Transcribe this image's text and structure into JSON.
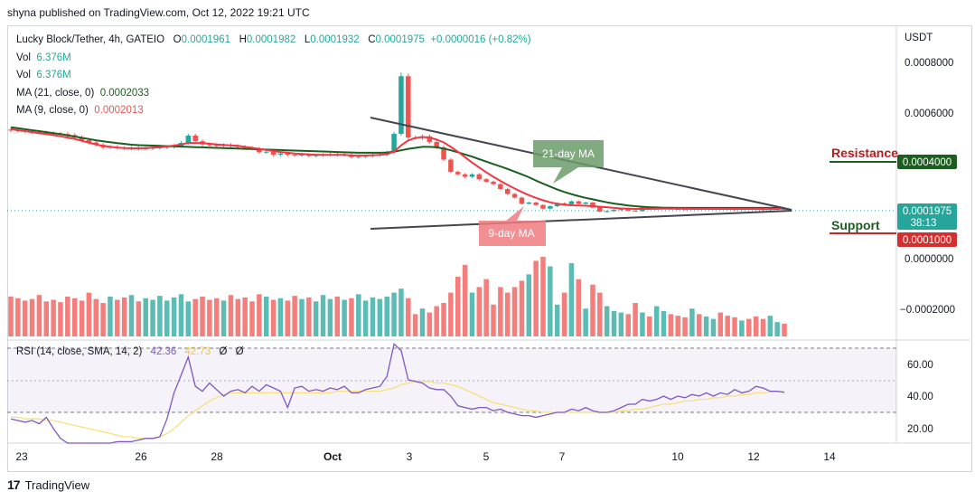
{
  "header": {
    "publisher": "shyna published on TradingView.com, Oct 12, 2022 19:21 UTC"
  },
  "legend": {
    "symbol": "Lucky Block/Tether, 4h, GATEIO",
    "o_label": "O",
    "o": "0.0001961",
    "h_label": "H",
    "h": "0.0001982",
    "l_label": "L",
    "l": "0.0001932",
    "c_label": "C",
    "c": "0.0001975",
    "change": "+0.0000016 (+0.82%)",
    "vol1_label": "Vol",
    "vol1": "6.376M",
    "vol2_label": "Vol",
    "vol2": "6.376M",
    "ma21_label": "MA (21, close, 0)",
    "ma21": "0.0002033",
    "ma9_label": "MA (9, close, 0)",
    "ma9": "0.0002013"
  },
  "price_axis": {
    "currency": "USDT",
    "ticks": [
      "0.0008000",
      "0.0006000",
      "0.0000000",
      "−0.0002000"
    ],
    "last_price": "0.0001975",
    "countdown": "38:13",
    "resistance_price": "0.0004000",
    "support_price": "0.0001000"
  },
  "annotations": {
    "resistance": "Resistance",
    "support": "Support",
    "ma21_callout": "21-day MA",
    "ma9_callout": "9-day MA"
  },
  "rsi": {
    "label": "RSI (14, close, SMA, 14, 2)",
    "rsi_value": "42.36",
    "sma_value": "42.73",
    "extra1": "Ø",
    "extra2": "Ø",
    "ticks": [
      "60.00",
      "40.00",
      "20.00"
    ]
  },
  "x_axis": {
    "ticks": [
      "23",
      "26",
      "28",
      "Oct",
      "3",
      "5",
      "7",
      "10",
      "12",
      "14"
    ]
  },
  "footer": {
    "brand": "TradingView"
  },
  "colors": {
    "up": "#26a69a",
    "down": "#ef5350",
    "ma21": "#1b5e20",
    "ma9": "#f23645",
    "rsi": "#7e57c2",
    "rsi_sma": "#f7e07a"
  },
  "chart_data": {
    "type": "candlestick",
    "title": "Lucky Block/Tether, 4h, GATEIO",
    "ylabel": "USDT",
    "ylim": [
      -0.00023,
      0.00085
    ],
    "x_ticks": [
      "23",
      "26",
      "28",
      "Oct",
      "3",
      "5",
      "7",
      "10",
      "12",
      "14"
    ],
    "closes": [
      0.00052,
      0.000518,
      0.000515,
      0.000512,
      0.00051,
      0.000508,
      0.000506,
      0.000504,
      0.0005,
      0.00049,
      0.00048,
      0.00047,
      0.00046,
      0.00045,
      0.000452,
      0.000448,
      0.000446,
      0.000448,
      0.000444,
      0.000446,
      0.000448,
      0.00045,
      0.000452,
      0.000456,
      0.000468,
      0.000498,
      0.000475,
      0.000462,
      0.00046,
      0.000458,
      0.00046,
      0.000455,
      0.000452,
      0.000448,
      0.000445,
      0.00043,
      0.000432,
      0.00042,
      0.000425,
      0.00042,
      0.000418,
      0.00042,
      0.000415,
      0.000418,
      0.00042,
      0.000422,
      0.000418,
      0.00042,
      0.00041,
      0.000412,
      0.000415,
      0.000418,
      0.00042,
      0.00043,
      0.000505,
      0.00074,
      0.00049,
      0.000488,
      0.000495,
      0.000472,
      0.00045,
      0.0004,
      0.00035,
      0.00034,
      0.00033,
      0.00034,
      0.00032,
      0.00031,
      0.0003,
      0.00028,
      0.00026,
      0.000245,
      0.00022,
      0.000225,
      0.000215,
      0.0002,
      0.00021,
      0.000222,
      0.000218,
      0.00023,
      0.00022,
      0.000225,
      0.000205,
      0.000188,
      0.00019,
      0.000195,
      0.000198,
      0.000192,
      0.00019,
      0.000205,
      0.000198,
      0.0002,
      0.000202,
      0.000199,
      0.000198,
      0.000197,
      0.000199,
      0.000198,
      0.0002,
      0.000201,
      0.000199,
      0.000198,
      0.000197,
      0.0002,
      0.000199,
      0.000198,
      0.000197,
      0.000198,
      0.000199,
      0.0001975
    ],
    "ma21": [
      0.000532,
      0.000528,
      0.000524,
      0.00052,
      0.000516,
      0.000512,
      0.000508,
      0.000504,
      0.000499,
      0.000494,
      0.000489,
      0.000484,
      0.000479,
      0.000475,
      0.000471,
      0.000467,
      0.000464,
      0.000461,
      0.000459,
      0.000458,
      0.000457,
      0.000456,
      0.000455,
      0.000454,
      0.000453,
      0.000452,
      0.000451,
      0.00045,
      0.000449,
      0.000448,
      0.000447,
      0.000446,
      0.000445,
      0.000444,
      0.000443,
      0.000442,
      0.000441,
      0.00044,
      0.000439,
      0.000438,
      0.000437,
      0.000436,
      0.000435,
      0.000434,
      0.000433,
      0.000432,
      0.000431,
      0.00043,
      0.000429,
      0.000428,
      0.000428,
      0.000428,
      0.000428,
      0.000429,
      0.000432,
      0.000438,
      0.000444,
      0.000448,
      0.000452,
      0.000452,
      0.00045,
      0.000445,
      0.000438,
      0.00043,
      0.000421,
      0.000412,
      0.000402,
      0.000392,
      0.000382,
      0.000372,
      0.000362,
      0.000351,
      0.00034,
      0.000328,
      0.000315,
      0.000302,
      0.00029,
      0.000278,
      0.000268,
      0.000259,
      0.000251,
      0.000244,
      0.000238,
      0.000232,
      0.000226,
      0.000221,
      0.000217,
      0.000213,
      0.00021,
      0.000208,
      0.000206,
      0.000205,
      0.000204,
      0.000204,
      0.000203,
      0.000203,
      0.000203,
      0.000203,
      0.000203,
      0.000203,
      0.000203,
      0.000203,
      0.000203,
      0.000203,
      0.000203,
      0.000203,
      0.000203,
      0.000203,
      0.000203,
      0.0002033
    ],
    "ma9": [
      0.000525,
      0.00052,
      0.000516,
      0.000512,
      0.000508,
      0.000504,
      0.0005,
      0.000495,
      0.00049,
      0.000484,
      0.000477,
      0.000469,
      0.000462,
      0.000456,
      0.000452,
      0.000449,
      0.000447,
      0.000446,
      0.000446,
      0.000447,
      0.000449,
      0.000451,
      0.000454,
      0.000457,
      0.000462,
      0.000468,
      0.000468,
      0.000467,
      0.000465,
      0.000462,
      0.00046,
      0.000458,
      0.000456,
      0.000452,
      0.000448,
      0.000444,
      0.000439,
      0.000435,
      0.000431,
      0.000428,
      0.000425,
      0.000423,
      0.000421,
      0.00042,
      0.000419,
      0.000419,
      0.000419,
      0.000419,
      0.000417,
      0.000417,
      0.000417,
      0.000418,
      0.000419,
      0.000422,
      0.000432,
      0.000458,
      0.000478,
      0.000488,
      0.000492,
      0.00049,
      0.000482,
      0.00047,
      0.000452,
      0.000432,
      0.00041,
      0.000388,
      0.000368,
      0.000348,
      0.00033,
      0.000313,
      0.000297,
      0.000282,
      0.000268,
      0.000255,
      0.000244,
      0.000234,
      0.000226,
      0.00022,
      0.000216,
      0.000214,
      0.000213,
      0.000212,
      0.00021,
      0.000208,
      0.000206,
      0.000203,
      0.000201,
      0.0002,
      0.000199,
      0.000199,
      0.000199,
      0.0002,
      0.0002,
      0.0002,
      0.0002,
      0.0002,
      0.000199,
      0.000199,
      0.000199,
      0.000199,
      0.000199,
      0.000199,
      0.000199,
      0.000199,
      0.000199,
      0.000199,
      0.000199,
      0.000199,
      0.000199,
      0.0002013
    ],
    "volume": [
      0.5,
      0.48,
      0.45,
      0.47,
      0.52,
      0.44,
      0.46,
      0.43,
      0.5,
      0.48,
      0.45,
      0.55,
      0.47,
      0.42,
      0.5,
      0.46,
      0.49,
      0.52,
      0.44,
      0.48,
      0.46,
      0.51,
      0.45,
      0.49,
      0.53,
      0.44,
      0.47,
      0.5,
      0.46,
      0.48,
      0.45,
      0.52,
      0.47,
      0.49,
      0.44,
      0.53,
      0.5,
      0.46,
      0.48,
      0.45,
      0.51,
      0.47,
      0.49,
      0.44,
      0.52,
      0.47,
      0.5,
      0.46,
      0.48,
      0.53,
      0.45,
      0.49,
      0.47,
      0.5,
      0.55,
      0.6,
      0.48,
      0.28,
      0.35,
      0.3,
      0.38,
      0.42,
      0.55,
      0.75,
      0.9,
      0.55,
      0.62,
      0.72,
      0.4,
      0.62,
      0.55,
      0.62,
      0.7,
      0.78,
      0.95,
      1.0,
      0.88,
      0.4,
      0.55,
      0.92,
      0.72,
      0.35,
      0.65,
      0.55,
      0.38,
      0.32,
      0.3,
      0.28,
      0.42,
      0.3,
      0.25,
      0.38,
      0.32,
      0.28,
      0.26,
      0.24,
      0.35,
      0.28,
      0.25,
      0.22,
      0.3,
      0.26,
      0.24,
      0.2,
      0.22,
      0.25,
      0.22,
      0.26,
      0.18,
      0.16
    ],
    "rsi": [
      26,
      25,
      24,
      25,
      23,
      27,
      20,
      14,
      10,
      11,
      10,
      10,
      10,
      11,
      11,
      12,
      12,
      12,
      13,
      14,
      14,
      15,
      26,
      42,
      53,
      64,
      46,
      43,
      48,
      44,
      40,
      43,
      44,
      42,
      46,
      43,
      47,
      45,
      43,
      33,
      45,
      46,
      43,
      44,
      43,
      45,
      44,
      46,
      42,
      42,
      44,
      45,
      46,
      52,
      72,
      68,
      50,
      49,
      48,
      45,
      44,
      44,
      40,
      34,
      33,
      32,
      33,
      33,
      31,
      32,
      30,
      29,
      28,
      28,
      27,
      28,
      29,
      30,
      30,
      32,
      31,
      33,
      31,
      30,
      30,
      31,
      33,
      35,
      35,
      38,
      37,
      38,
      40,
      38,
      40,
      39,
      41,
      40,
      42,
      40,
      42,
      41,
      44,
      42,
      43,
      46,
      45,
      43,
      43,
      42.36
    ],
    "rsi_sma": [
      27,
      27,
      26,
      26,
      26,
      25,
      25,
      24,
      23,
      22,
      21,
      20,
      19,
      18,
      17,
      16,
      15,
      15,
      14,
      14,
      14,
      15,
      17,
      20,
      24,
      28,
      31,
      34,
      37,
      39,
      41,
      42,
      42,
      42,
      42,
      42,
      42,
      42,
      42,
      42,
      42,
      42,
      42,
      42,
      42,
      42,
      43,
      43,
      43,
      43,
      43,
      43,
      43,
      44,
      45,
      47,
      48,
      49,
      49,
      49,
      48,
      48,
      47,
      46,
      44,
      42,
      40,
      38,
      36,
      35,
      34,
      33,
      32,
      31,
      31,
      30,
      30,
      30,
      30,
      30,
      30,
      30,
      30,
      30,
      30,
      30,
      31,
      31,
      32,
      32,
      33,
      34,
      35,
      35,
      36,
      37,
      37,
      38,
      38,
      39,
      39,
      40,
      40,
      41,
      41,
      42,
      42,
      42.5,
      42.6,
      42.73
    ]
  }
}
